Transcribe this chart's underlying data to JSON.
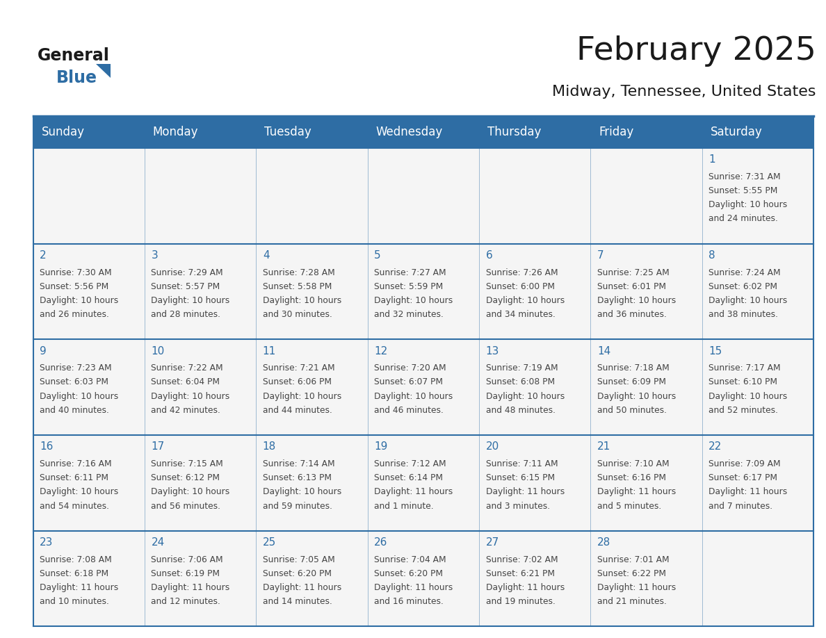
{
  "title": "February 2025",
  "subtitle": "Midway, Tennessee, United States",
  "days_of_week": [
    "Sunday",
    "Monday",
    "Tuesday",
    "Wednesday",
    "Thursday",
    "Friday",
    "Saturday"
  ],
  "header_bg": "#2E6DA4",
  "header_text": "#FFFFFF",
  "cell_bg": "#F5F5F5",
  "border_color": "#2E6DA4",
  "day_num_color": "#2E6DA4",
  "text_color": "#444444",
  "title_color": "#1a1a1a",
  "calendar_data": [
    [
      null,
      null,
      null,
      null,
      null,
      null,
      {
        "day": 1,
        "rise": "7:31 AM",
        "set": "5:55 PM",
        "daylight": "10 hours and 24 minutes."
      }
    ],
    [
      {
        "day": 2,
        "rise": "7:30 AM",
        "set": "5:56 PM",
        "daylight": "10 hours and 26 minutes."
      },
      {
        "day": 3,
        "rise": "7:29 AM",
        "set": "5:57 PM",
        "daylight": "10 hours and 28 minutes."
      },
      {
        "day": 4,
        "rise": "7:28 AM",
        "set": "5:58 PM",
        "daylight": "10 hours and 30 minutes."
      },
      {
        "day": 5,
        "rise": "7:27 AM",
        "set": "5:59 PM",
        "daylight": "10 hours and 32 minutes."
      },
      {
        "day": 6,
        "rise": "7:26 AM",
        "set": "6:00 PM",
        "daylight": "10 hours and 34 minutes."
      },
      {
        "day": 7,
        "rise": "7:25 AM",
        "set": "6:01 PM",
        "daylight": "10 hours and 36 minutes."
      },
      {
        "day": 8,
        "rise": "7:24 AM",
        "set": "6:02 PM",
        "daylight": "10 hours and 38 minutes."
      }
    ],
    [
      {
        "day": 9,
        "rise": "7:23 AM",
        "set": "6:03 PM",
        "daylight": "10 hours and 40 minutes."
      },
      {
        "day": 10,
        "rise": "7:22 AM",
        "set": "6:04 PM",
        "daylight": "10 hours and 42 minutes."
      },
      {
        "day": 11,
        "rise": "7:21 AM",
        "set": "6:06 PM",
        "daylight": "10 hours and 44 minutes."
      },
      {
        "day": 12,
        "rise": "7:20 AM",
        "set": "6:07 PM",
        "daylight": "10 hours and 46 minutes."
      },
      {
        "day": 13,
        "rise": "7:19 AM",
        "set": "6:08 PM",
        "daylight": "10 hours and 48 minutes."
      },
      {
        "day": 14,
        "rise": "7:18 AM",
        "set": "6:09 PM",
        "daylight": "10 hours and 50 minutes."
      },
      {
        "day": 15,
        "rise": "7:17 AM",
        "set": "6:10 PM",
        "daylight": "10 hours and 52 minutes."
      }
    ],
    [
      {
        "day": 16,
        "rise": "7:16 AM",
        "set": "6:11 PM",
        "daylight": "10 hours and 54 minutes."
      },
      {
        "day": 17,
        "rise": "7:15 AM",
        "set": "6:12 PM",
        "daylight": "10 hours and 56 minutes."
      },
      {
        "day": 18,
        "rise": "7:14 AM",
        "set": "6:13 PM",
        "daylight": "10 hours and 59 minutes."
      },
      {
        "day": 19,
        "rise": "7:12 AM",
        "set": "6:14 PM",
        "daylight": "11 hours and 1 minute."
      },
      {
        "day": 20,
        "rise": "7:11 AM",
        "set": "6:15 PM",
        "daylight": "11 hours and 3 minutes."
      },
      {
        "day": 21,
        "rise": "7:10 AM",
        "set": "6:16 PM",
        "daylight": "11 hours and 5 minutes."
      },
      {
        "day": 22,
        "rise": "7:09 AM",
        "set": "6:17 PM",
        "daylight": "11 hours and 7 minutes."
      }
    ],
    [
      {
        "day": 23,
        "rise": "7:08 AM",
        "set": "6:18 PM",
        "daylight": "11 hours and 10 minutes."
      },
      {
        "day": 24,
        "rise": "7:06 AM",
        "set": "6:19 PM",
        "daylight": "11 hours and 12 minutes."
      },
      {
        "day": 25,
        "rise": "7:05 AM",
        "set": "6:20 PM",
        "daylight": "11 hours and 14 minutes."
      },
      {
        "day": 26,
        "rise": "7:04 AM",
        "set": "6:20 PM",
        "daylight": "11 hours and 16 minutes."
      },
      {
        "day": 27,
        "rise": "7:02 AM",
        "set": "6:21 PM",
        "daylight": "11 hours and 19 minutes."
      },
      {
        "day": 28,
        "rise": "7:01 AM",
        "set": "6:22 PM",
        "daylight": "11 hours and 21 minutes."
      },
      null
    ]
  ],
  "logo_text_general": "General",
  "logo_text_blue": "Blue",
  "figsize": [
    11.88,
    9.18
  ],
  "dpi": 100
}
